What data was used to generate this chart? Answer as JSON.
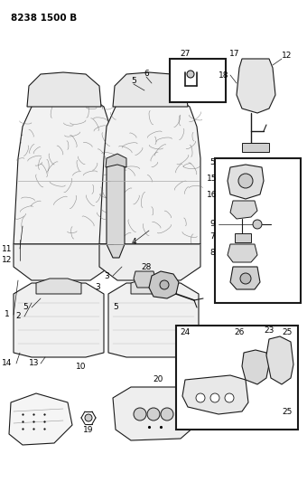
{
  "title": "8238 1500 B",
  "bg_color": "#ffffff",
  "line_color": "#1a1a1a",
  "fig_width": 3.4,
  "fig_height": 5.33,
  "dpi": 100
}
